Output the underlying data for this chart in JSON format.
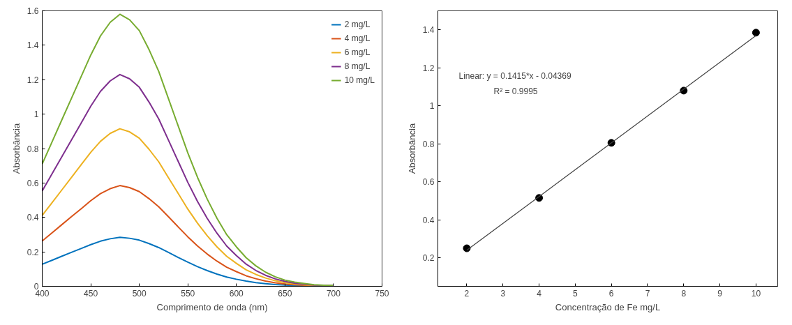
{
  "chart_data": [
    {
      "type": "line",
      "xlabel": "Comprimento de onda (nm)",
      "ylabel": "Absorbância",
      "xlim": [
        400,
        750
      ],
      "ylim": [
        0,
        1.6
      ],
      "xticks": [
        400,
        450,
        500,
        550,
        600,
        650,
        700,
        750
      ],
      "yticks": [
        0,
        0.2,
        0.4,
        0.6,
        0.8,
        1,
        1.2,
        1.4,
        1.6
      ],
      "grid": false,
      "legend": "top right",
      "x": [
        400,
        410,
        420,
        430,
        440,
        450,
        460,
        470,
        480,
        490,
        500,
        510,
        520,
        530,
        540,
        550,
        560,
        570,
        580,
        590,
        600,
        610,
        620,
        630,
        640,
        650,
        660,
        670,
        680,
        690,
        700
      ],
      "series": [
        {
          "name": "2 mg/L",
          "color": "#0072bd",
          "x": [
            400,
            410,
            420,
            430,
            440,
            450,
            460,
            470,
            480,
            490,
            500,
            510,
            520,
            530,
            540,
            550,
            560,
            570,
            580,
            590,
            600,
            610,
            620,
            630,
            640,
            650,
            660,
            670
          ],
          "values": [
            0.128,
            0.151,
            0.174,
            0.197,
            0.219,
            0.242,
            0.262,
            0.276,
            0.285,
            0.279,
            0.268,
            0.248,
            0.225,
            0.197,
            0.168,
            0.14,
            0.114,
            0.091,
            0.071,
            0.054,
            0.041,
            0.03,
            0.021,
            0.015,
            0.01,
            0.007,
            0.004,
            0.003
          ]
        },
        {
          "name": "4 mg/L",
          "color": "#d95319",
          "values": [
            0.263,
            0.31,
            0.357,
            0.404,
            0.45,
            0.497,
            0.538,
            0.567,
            0.585,
            0.573,
            0.55,
            0.509,
            0.462,
            0.404,
            0.345,
            0.287,
            0.234,
            0.187,
            0.146,
            0.111,
            0.085,
            0.061,
            0.044,
            0.03,
            0.02,
            0.013,
            0.009,
            0.006,
            0.004,
            0.002,
            0.002
          ]
        },
        {
          "name": "6 mg/L",
          "color": "#edb120",
          "values": [
            0.412,
            0.485,
            0.558,
            0.631,
            0.705,
            0.778,
            0.842,
            0.888,
            0.915,
            0.897,
            0.86,
            0.796,
            0.723,
            0.631,
            0.54,
            0.448,
            0.366,
            0.293,
            0.229,
            0.174,
            0.133,
            0.096,
            0.069,
            0.048,
            0.032,
            0.021,
            0.014,
            0.009,
            0.005,
            0.004,
            0.003
          ]
        },
        {
          "name": "8 mg/L",
          "color": "#7e2f8e",
          "values": [
            0.554,
            0.652,
            0.75,
            0.849,
            0.947,
            1.046,
            1.132,
            1.193,
            1.23,
            1.205,
            1.156,
            1.07,
            0.972,
            0.849,
            0.726,
            0.603,
            0.492,
            0.394,
            0.308,
            0.234,
            0.178,
            0.129,
            0.092,
            0.064,
            0.043,
            0.028,
            0.018,
            0.012,
            0.007,
            0.005,
            0.004
          ]
        },
        {
          "name": "10 mg/L",
          "color": "#77ac30",
          "values": [
            0.711,
            0.837,
            0.964,
            1.09,
            1.217,
            1.343,
            1.454,
            1.533,
            1.58,
            1.548,
            1.485,
            1.375,
            1.248,
            1.09,
            0.932,
            0.774,
            0.632,
            0.506,
            0.395,
            0.3,
            0.229,
            0.166,
            0.119,
            0.082,
            0.055,
            0.036,
            0.024,
            0.016,
            0.009,
            0.006,
            0.005
          ]
        }
      ]
    },
    {
      "type": "scatter",
      "xlabel": "Concentração de Fe mg/L",
      "ylabel": "Absorbância",
      "xlim": [
        1.2,
        10.6
      ],
      "ylim": [
        0.05,
        1.5
      ],
      "xticks": [
        2,
        3,
        4,
        5,
        6,
        7,
        8,
        9,
        10
      ],
      "yticks": [
        0.2,
        0.4,
        0.6,
        0.8,
        1,
        1.2,
        1.4
      ],
      "grid": false,
      "annotations": [
        "Linear:  y = 0.1415*x - 0.04369",
        "R² = 0.9995"
      ],
      "series": [
        {
          "color": "#000000",
          "marker": "circle",
          "x": [
            2,
            4,
            6,
            8,
            10
          ],
          "values": [
            0.25,
            0.515,
            0.805,
            1.08,
            1.385
          ]
        },
        {
          "type": "line",
          "color": "#404040",
          "x": [
            2,
            10
          ],
          "values": [
            0.24,
            1.37
          ]
        }
      ]
    }
  ]
}
